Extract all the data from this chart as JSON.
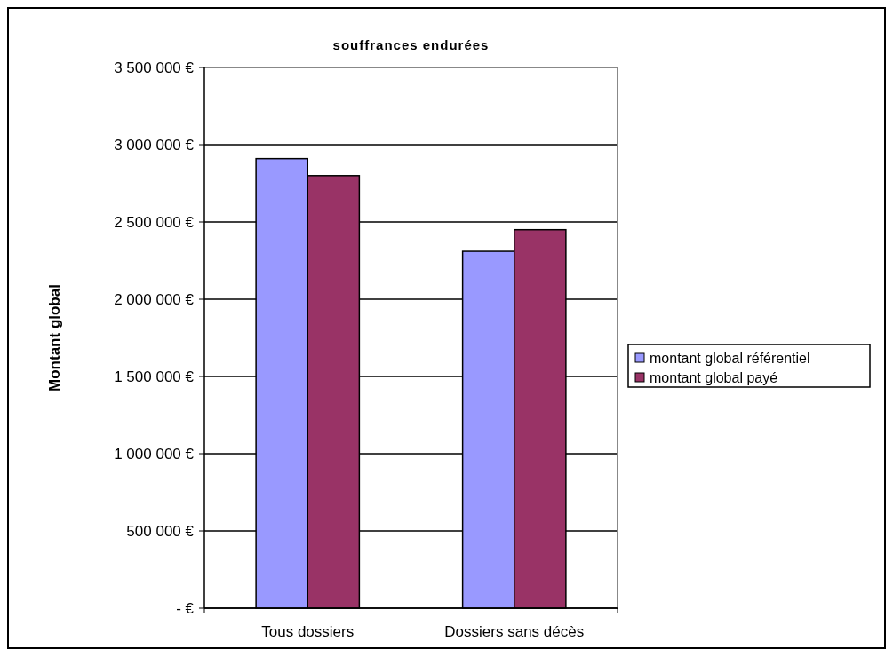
{
  "chart_data": {
    "type": "bar",
    "title": "souffrances endurées",
    "ylabel": "Montant global",
    "categories": [
      "Tous dossiers",
      "Dossiers sans décès"
    ],
    "series": [
      {
        "name": "montant global référentiel",
        "color": "#9999ff",
        "values": [
          2910000,
          2310000
        ]
      },
      {
        "name": "montant global payé",
        "color": "#993366",
        "values": [
          2800000,
          2450000
        ]
      }
    ],
    "ylim": [
      0,
      3500000
    ],
    "yticks": [
      {
        "value": 0,
        "label": "- €"
      },
      {
        "value": 500000,
        "label": "500 000 €"
      },
      {
        "value": 1000000,
        "label": "1 000 000 €"
      },
      {
        "value": 1500000,
        "label": "1 500 000 €"
      },
      {
        "value": 2000000,
        "label": "2 000 000 €"
      },
      {
        "value": 2500000,
        "label": "2 500 000 €"
      },
      {
        "value": 3000000,
        "label": "3 000 000 €"
      },
      {
        "value": 3500000,
        "label": "3 500 000 €"
      }
    ],
    "grid": "y",
    "legend": "right"
  }
}
